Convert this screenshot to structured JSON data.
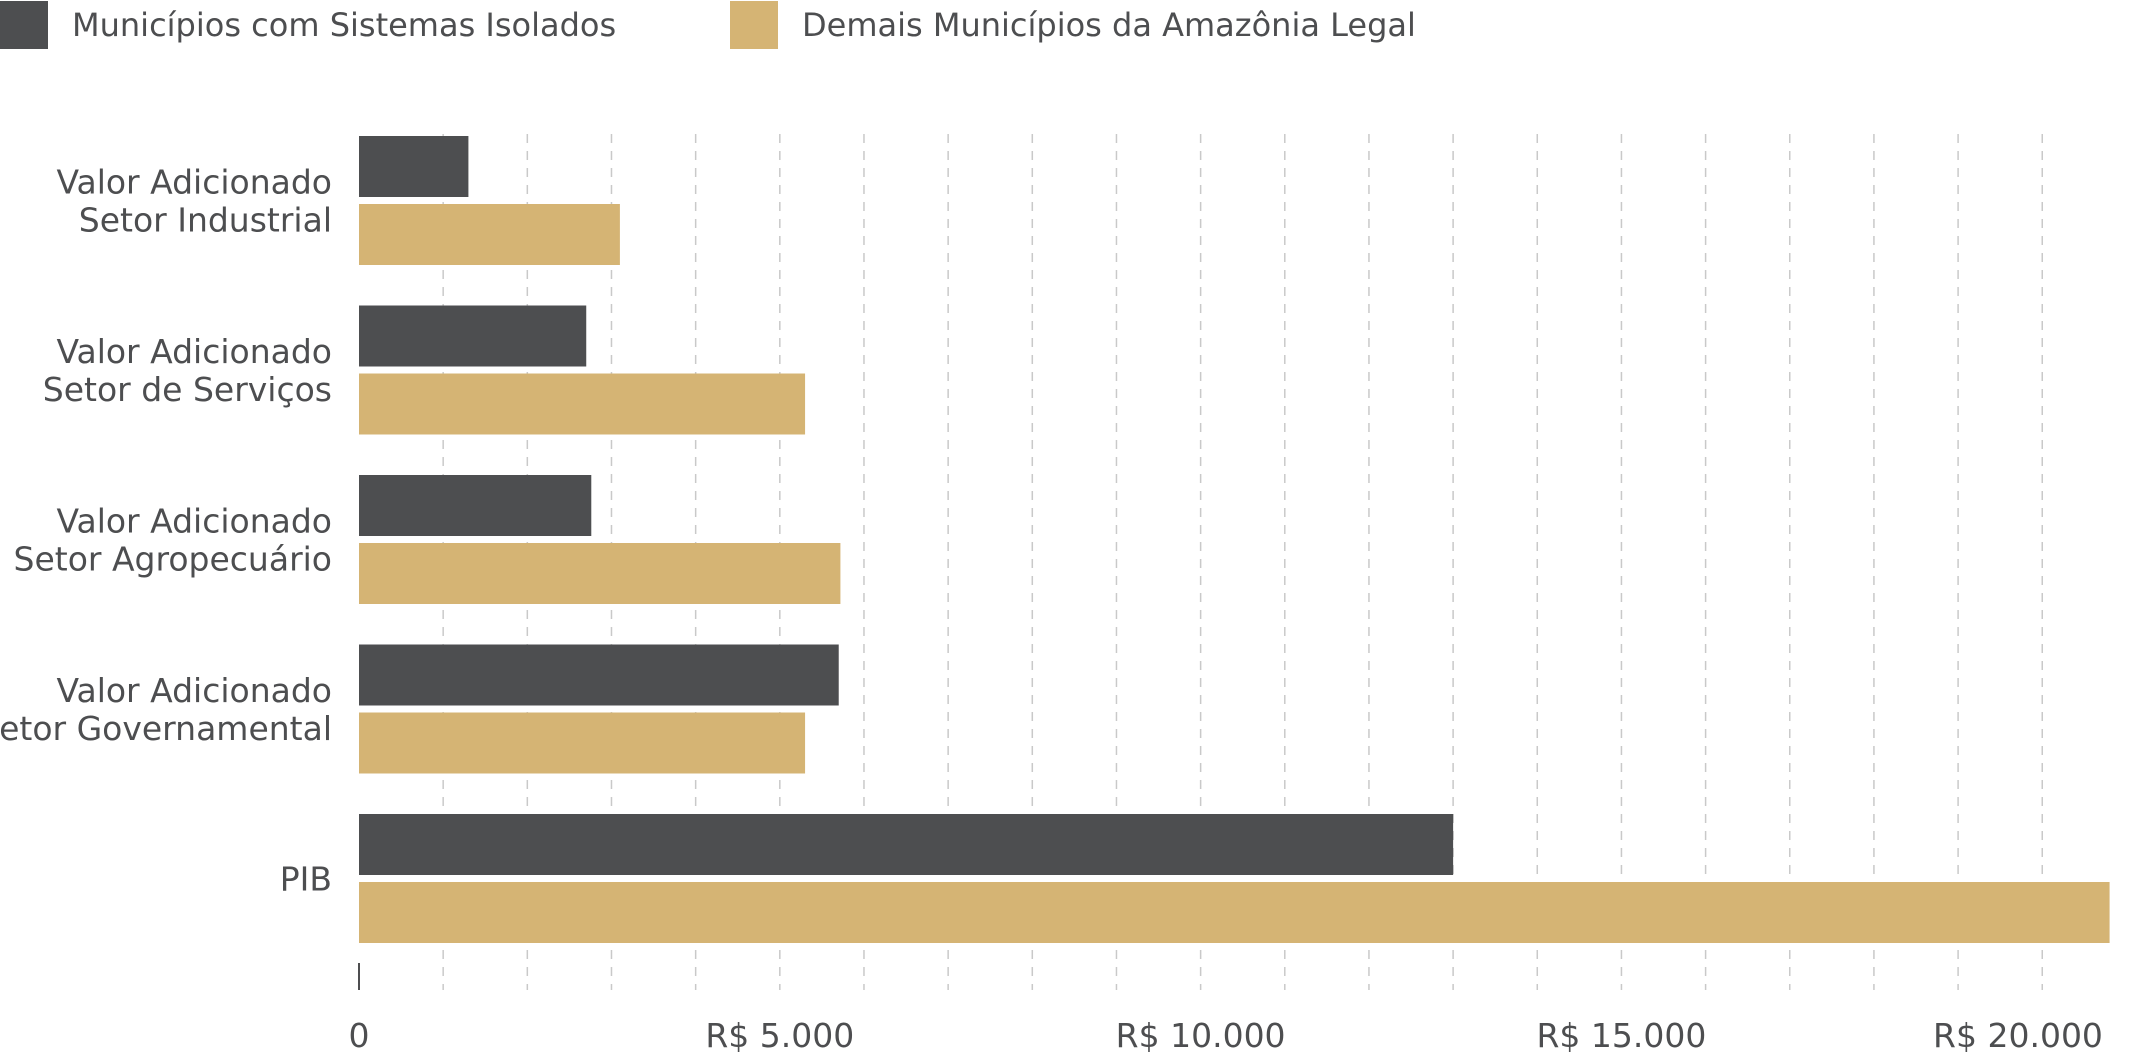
{
  "chart_data": {
    "type": "bar",
    "orientation": "horizontal",
    "title": "",
    "xlabel": "",
    "ylabel": "",
    "categories": [
      [
        "Valor Adicionado",
        "Setor Industrial"
      ],
      [
        "Valor Adicionado",
        "Setor de Serviços"
      ],
      [
        "Valor Adicionado",
        "Setor Agropecuário"
      ],
      [
        "Valor Adicionado",
        "Setor Governamental"
      ],
      [
        "PIB"
      ]
    ],
    "series": [
      {
        "name": "Municípios com Sistemas Isolados",
        "color": "#4d4e50",
        "values": [
          1300,
          2700,
          2760,
          5700,
          13000
        ]
      },
      {
        "name": "Demais Municípios da Amazônia Legal",
        "color": "#d5b474",
        "values": [
          3100,
          5300,
          5720,
          5300,
          20800
        ]
      }
    ],
    "xlim": [
      0,
      20900
    ],
    "xticks": [
      {
        "value": 0,
        "label": "0"
      },
      {
        "value": 5000,
        "label": "R$ 5.000"
      },
      {
        "value": 10000,
        "label": "R$ 10.000"
      },
      {
        "value": 15000,
        "label": "R$ 15.000"
      },
      {
        "value": 20000,
        "label": "R$ 20.000"
      }
    ],
    "grid_step": 1000,
    "grid": true,
    "gridline_style": "dashed",
    "legend_position": "top-left"
  }
}
